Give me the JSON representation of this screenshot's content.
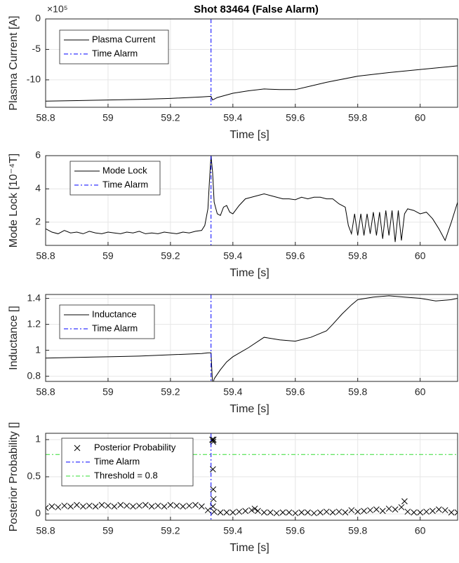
{
  "chart_data": [
    {
      "type": "line",
      "title": "Shot 83464 (False Alarm)",
      "y_exponent": "×10⁵",
      "ylabel": "Plasma Current [A]",
      "xlabel": "Time [s]",
      "xlim": [
        58.8,
        60.12
      ],
      "xticks": [
        58.8,
        59,
        59.2,
        59.4,
        59.6,
        59.8,
        60
      ],
      "ylim": [
        -14.5,
        0
      ],
      "yticks": [
        -10,
        -5,
        0
      ],
      "grid": true,
      "legend": "upper left",
      "x": [
        58.8,
        58.9,
        59.0,
        59.1,
        59.2,
        59.3,
        59.33,
        59.335,
        59.35,
        59.4,
        59.45,
        59.5,
        59.55,
        59.6,
        59.65,
        59.7,
        59.75,
        59.8,
        59.9,
        60.0,
        60.12
      ],
      "series": [
        {
          "name": "Plasma Current",
          "color": "#000000",
          "values": [
            -13.5,
            -13.4,
            -13.3,
            -13.2,
            -13.05,
            -12.8,
            -12.7,
            -13.3,
            -12.9,
            -12.2,
            -11.8,
            -11.5,
            -11.6,
            -11.6,
            -11.0,
            -10.4,
            -9.9,
            -9.4,
            -8.8,
            -8.3,
            -7.7
          ]
        }
      ],
      "vlines": [
        {
          "name": "Time Alarm",
          "color": "#0000ff",
          "x": 59.33
        }
      ]
    },
    {
      "type": "line",
      "ylabel": "Mode Lock [10⁻⁴T]",
      "xlabel": "Time [s]",
      "xlim": [
        58.8,
        60.12
      ],
      "xticks": [
        58.8,
        59,
        59.2,
        59.4,
        59.6,
        59.8,
        60
      ],
      "ylim": [
        0.6,
        6
      ],
      "yticks": [
        2,
        4,
        6
      ],
      "grid": true,
      "legend": "upper left",
      "x": [
        58.8,
        58.82,
        58.84,
        58.86,
        58.88,
        58.9,
        58.92,
        58.94,
        58.96,
        58.98,
        59.0,
        59.02,
        59.04,
        59.06,
        59.08,
        59.1,
        59.12,
        59.14,
        59.16,
        59.18,
        59.2,
        59.22,
        59.24,
        59.26,
        59.28,
        59.3,
        59.31,
        59.32,
        59.325,
        59.33,
        59.335,
        59.34,
        59.35,
        59.36,
        59.37,
        59.38,
        59.39,
        59.4,
        59.42,
        59.44,
        59.46,
        59.48,
        59.5,
        59.52,
        59.54,
        59.56,
        59.58,
        59.6,
        59.62,
        59.64,
        59.66,
        59.68,
        59.7,
        59.72,
        59.74,
        59.76,
        59.77,
        59.78,
        59.79,
        59.8,
        59.81,
        59.82,
        59.83,
        59.84,
        59.85,
        59.86,
        59.87,
        59.88,
        59.89,
        59.9,
        59.91,
        59.92,
        59.93,
        59.94,
        59.95,
        59.96,
        59.98,
        60.0,
        60.02,
        60.04,
        60.06,
        60.08,
        60.1,
        60.12
      ],
      "series": [
        {
          "name": "Mode Lock",
          "color": "#000000",
          "values": [
            1.6,
            1.4,
            1.3,
            1.5,
            1.35,
            1.4,
            1.3,
            1.45,
            1.35,
            1.3,
            1.4,
            1.35,
            1.3,
            1.4,
            1.35,
            1.45,
            1.3,
            1.35,
            1.3,
            1.4,
            1.35,
            1.3,
            1.4,
            1.35,
            1.45,
            1.5,
            1.8,
            2.8,
            4.5,
            6.0,
            5.0,
            3.2,
            2.5,
            2.4,
            2.9,
            3.0,
            2.6,
            2.5,
            3.0,
            3.4,
            3.5,
            3.6,
            3.7,
            3.6,
            3.5,
            3.4,
            3.4,
            3.35,
            3.5,
            3.4,
            3.5,
            3.5,
            3.4,
            3.4,
            3.1,
            2.9,
            1.8,
            1.3,
            2.5,
            1.2,
            2.5,
            1.2,
            2.5,
            1.3,
            2.6,
            1.2,
            2.6,
            1.0,
            2.7,
            1.2,
            2.7,
            0.8,
            2.7,
            0.9,
            2.5,
            2.8,
            2.7,
            2.5,
            2.6,
            2.2,
            1.6,
            0.9,
            2.0,
            3.2
          ]
        }
      ],
      "vlines": [
        {
          "name": "Time Alarm",
          "color": "#0000ff",
          "x": 59.33
        }
      ]
    },
    {
      "type": "line",
      "ylabel": "Inductance []",
      "xlabel": "Time [s]",
      "xlim": [
        58.8,
        60.12
      ],
      "xticks": [
        58.8,
        59,
        59.2,
        59.4,
        59.6,
        59.8,
        60
      ],
      "ylim": [
        0.76,
        1.43
      ],
      "yticks": [
        0.8,
        1,
        1.2,
        1.4
      ],
      "grid": true,
      "legend": "upper left",
      "x": [
        58.8,
        58.9,
        59.0,
        59.1,
        59.2,
        59.3,
        59.32,
        59.33,
        59.335,
        59.34,
        59.36,
        59.38,
        59.4,
        59.45,
        59.5,
        59.55,
        59.6,
        59.65,
        59.7,
        59.72,
        59.75,
        59.78,
        59.8,
        59.85,
        59.9,
        59.95,
        60.0,
        60.05,
        60.1,
        60.12
      ],
      "series": [
        {
          "name": "Inductance",
          "color": "#000000",
          "values": [
            0.94,
            0.945,
            0.95,
            0.955,
            0.965,
            0.975,
            0.98,
            0.98,
            0.73,
            0.78,
            0.85,
            0.91,
            0.95,
            1.02,
            1.1,
            1.08,
            1.07,
            1.1,
            1.15,
            1.2,
            1.28,
            1.35,
            1.39,
            1.41,
            1.42,
            1.41,
            1.4,
            1.38,
            1.39,
            1.4
          ]
        }
      ],
      "vlines": [
        {
          "name": "Time Alarm",
          "color": "#0000ff",
          "x": 59.33
        }
      ]
    },
    {
      "type": "scatter",
      "ylabel": "Posterior Probability []",
      "xlabel": "Time [s]",
      "xlim": [
        58.8,
        60.12
      ],
      "xticks": [
        58.8,
        59,
        59.2,
        59.4,
        59.6,
        59.8,
        60
      ],
      "ylim": [
        -0.085,
        1.085
      ],
      "yticks": [
        0,
        0.5,
        1
      ],
      "grid": true,
      "legend": "upper left",
      "x": [
        58.8,
        58.82,
        58.84,
        58.86,
        58.88,
        58.9,
        58.92,
        58.94,
        58.96,
        58.98,
        59.0,
        59.02,
        59.04,
        59.06,
        59.08,
        59.1,
        59.12,
        59.14,
        59.16,
        59.18,
        59.2,
        59.22,
        59.24,
        59.26,
        59.28,
        59.3,
        59.32,
        59.334,
        59.336,
        59.338,
        59.337,
        59.336,
        59.337,
        59.338,
        59.336,
        59.34,
        59.36,
        59.38,
        59.4,
        59.42,
        59.44,
        59.46,
        59.47,
        59.48,
        59.5,
        59.52,
        59.54,
        59.56,
        59.58,
        59.6,
        59.62,
        59.64,
        59.66,
        59.68,
        59.7,
        59.72,
        59.74,
        59.76,
        59.78,
        59.8,
        59.82,
        59.84,
        59.86,
        59.88,
        59.9,
        59.92,
        59.94,
        59.95,
        59.96,
        59.98,
        60.0,
        60.02,
        60.04,
        60.06,
        60.08,
        60.1,
        60.12
      ],
      "series": [
        {
          "name": "Posterior Probability",
          "color": "#000000",
          "values": [
            0.08,
            0.1,
            0.09,
            0.11,
            0.1,
            0.12,
            0.1,
            0.11,
            0.1,
            0.12,
            0.11,
            0.1,
            0.12,
            0.11,
            0.1,
            0.11,
            0.12,
            0.1,
            0.11,
            0.1,
            0.12,
            0.11,
            0.1,
            0.11,
            0.12,
            0.1,
            0.05,
            1.0,
            0.99,
            1.0,
            0.97,
            0.6,
            0.33,
            0.2,
            0.1,
            0.03,
            0.02,
            0.02,
            0.02,
            0.03,
            0.04,
            0.05,
            0.07,
            0.04,
            0.02,
            0.02,
            0.01,
            0.02,
            0.02,
            0.01,
            0.02,
            0.02,
            0.01,
            0.02,
            0.03,
            0.02,
            0.03,
            0.02,
            0.05,
            0.03,
            0.04,
            0.05,
            0.06,
            0.04,
            0.07,
            0.06,
            0.09,
            0.17,
            0.03,
            0.02,
            0.02,
            0.03,
            0.04,
            0.06,
            0.05,
            0.02,
            0.02
          ]
        }
      ],
      "vlines": [
        {
          "name": "Time Alarm",
          "color": "#0000ff",
          "x": 59.33
        }
      ],
      "hlines": [
        {
          "name": "Threshold = 0.8",
          "color": "#33dd33",
          "y": 0.8
        }
      ]
    }
  ]
}
